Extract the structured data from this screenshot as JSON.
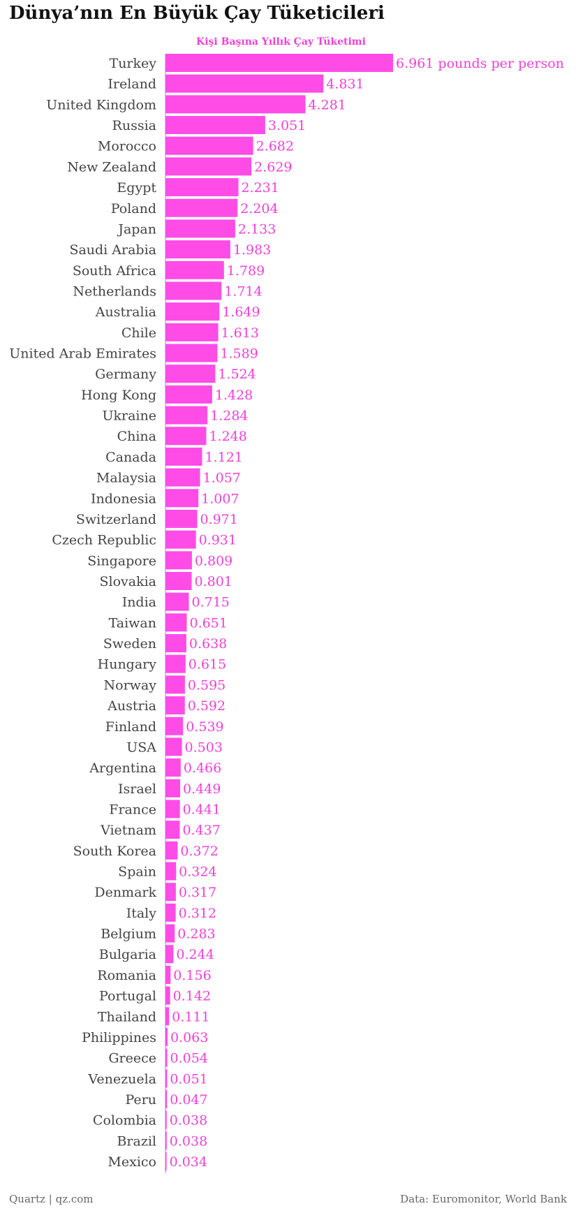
{
  "chart_data": {
    "type": "bar",
    "orientation": "horizontal",
    "title": "Dünya’nın En Büyük Çay Tüketicileri",
    "subtitle": "Kişi Başına Yıllık Çay Tüketimi",
    "unit_suffix_first": " pounds per person",
    "bar_color": "#ff4ce6",
    "label_color": "#f040d8",
    "xlim": [
      0,
      6.961
    ],
    "grid": false,
    "categories": [
      "Turkey",
      "Ireland",
      "United Kingdom",
      "Russia",
      "Morocco",
      "New Zealand",
      "Egypt",
      "Poland",
      "Japan",
      "Saudi Arabia",
      "South Africa",
      "Netherlands",
      "Australia",
      "Chile",
      "United Arab Emirates",
      "Germany",
      "Hong Kong",
      "Ukraine",
      "China",
      "Canada",
      "Malaysia",
      "Indonesia",
      "Switzerland",
      "Czech Republic",
      "Singapore",
      "Slovakia",
      "India",
      "Taiwan",
      "Sweden",
      "Hungary",
      "Norway",
      "Austria",
      "Finland",
      "USA",
      "Argentina",
      "Israel",
      "France",
      "Vietnam",
      "South Korea",
      "Spain",
      "Denmark",
      "Italy",
      "Belgium",
      "Bulgaria",
      "Romania",
      "Portugal",
      "Thailand",
      "Philippines",
      "Greece",
      "Venezuela",
      "Peru",
      "Colombia",
      "Brazil",
      "Mexico"
    ],
    "values": [
      6.961,
      4.831,
      4.281,
      3.051,
      2.682,
      2.629,
      2.231,
      2.204,
      2.133,
      1.983,
      1.789,
      1.714,
      1.649,
      1.613,
      1.589,
      1.524,
      1.428,
      1.284,
      1.248,
      1.121,
      1.057,
      1.007,
      0.971,
      0.931,
      0.809,
      0.801,
      0.715,
      0.651,
      0.638,
      0.615,
      0.595,
      0.592,
      0.539,
      0.503,
      0.466,
      0.449,
      0.441,
      0.437,
      0.372,
      0.324,
      0.317,
      0.312,
      0.283,
      0.244,
      0.156,
      0.142,
      0.111,
      0.063,
      0.054,
      0.051,
      0.047,
      0.038,
      0.038,
      0.034
    ],
    "value_labels": [
      "6.961",
      "4.831",
      "4.281",
      "3.051",
      "2.682",
      "2.629",
      "2.231",
      "2.204",
      "2.133",
      "1.983",
      "1.789",
      "1.714",
      "1.649",
      "1.613",
      "1.589",
      "1.524",
      "1.428",
      "1.284",
      "1.248",
      "1.121",
      "1.057",
      "1.007",
      "0.971",
      "0.931",
      "0.809",
      "0.801",
      "0.715",
      "0.651",
      "0.638",
      "0.615",
      "0.595",
      "0.592",
      "0.539",
      "0.503",
      "0.466",
      "0.449",
      "0.441",
      "0.437",
      "0.372",
      "0.324",
      "0.317",
      "0.312",
      "0.283",
      "0.244",
      "0.156",
      "0.142",
      "0.111",
      "0.063",
      "0.054",
      "0.051",
      "0.047",
      "0.038",
      "0.038",
      "0.034"
    ]
  },
  "footer": {
    "left": "Quartz | qz.com",
    "right": "Data: Euromonitor, World Bank"
  }
}
